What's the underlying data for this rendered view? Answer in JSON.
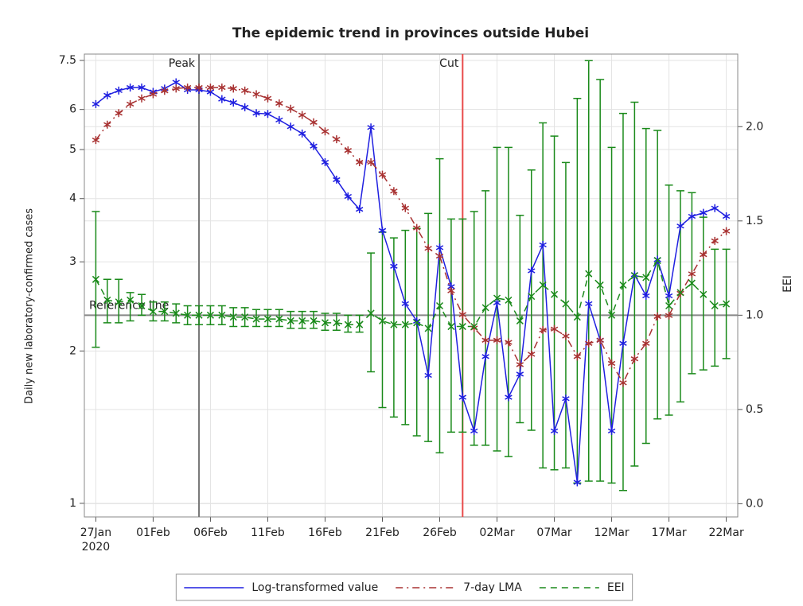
{
  "chart_data": {
    "type": "line",
    "title": "The epidemic trend in provinces outside Hubei",
    "ylabel": "Daily new laboratory-confirmed cases",
    "y2label": "EEI",
    "x_year_label": "2020",
    "x": [
      "2020-01-27",
      "2020-01-28",
      "2020-01-29",
      "2020-01-30",
      "2020-01-31",
      "2020-02-01",
      "2020-02-02",
      "2020-02-03",
      "2020-02-04",
      "2020-02-05",
      "2020-02-06",
      "2020-02-07",
      "2020-02-08",
      "2020-02-09",
      "2020-02-10",
      "2020-02-11",
      "2020-02-12",
      "2020-02-13",
      "2020-02-14",
      "2020-02-15",
      "2020-02-16",
      "2020-02-17",
      "2020-02-18",
      "2020-02-19",
      "2020-02-20",
      "2020-02-21",
      "2020-02-22",
      "2020-02-23",
      "2020-02-24",
      "2020-02-25",
      "2020-02-26",
      "2020-02-27",
      "2020-02-28",
      "2020-02-29",
      "2020-03-01",
      "2020-03-02",
      "2020-03-03",
      "2020-03-04",
      "2020-03-05",
      "2020-03-06",
      "2020-03-07",
      "2020-03-08",
      "2020-03-09",
      "2020-03-10",
      "2020-03-11",
      "2020-03-12",
      "2020-03-13",
      "2020-03-14",
      "2020-03-15",
      "2020-03-16",
      "2020-03-17",
      "2020-03-18",
      "2020-03-19",
      "2020-03-20",
      "2020-03-21",
      "2020-03-22"
    ],
    "xlim": [
      "2020-01-26",
      "2020-03-23"
    ],
    "xticks": [
      {
        "value": "2020-01-27",
        "label": "27Jan"
      },
      {
        "value": "2020-02-01",
        "label": "01Feb"
      },
      {
        "value": "2020-02-06",
        "label": "06Feb"
      },
      {
        "value": "2020-02-11",
        "label": "11Feb"
      },
      {
        "value": "2020-02-16",
        "label": "16Feb"
      },
      {
        "value": "2020-02-21",
        "label": "21Feb"
      },
      {
        "value": "2020-02-26",
        "label": "26Feb"
      },
      {
        "value": "2020-03-02",
        "label": "02Mar"
      },
      {
        "value": "2020-03-07",
        "label": "07Mar"
      },
      {
        "value": "2020-03-12",
        "label": "12Mar"
      },
      {
        "value": "2020-03-17",
        "label": "17Mar"
      },
      {
        "value": "2020-03-22",
        "label": "22Mar"
      }
    ],
    "ylim": [
      0.94,
      7.72
    ],
    "yticks": [
      1,
      2,
      3,
      4,
      5,
      6,
      7.5
    ],
    "ylog": true,
    "y2lim": [
      -0.07,
      2.385
    ],
    "y2ticks": [
      {
        "value": 0,
        "label": "0.0"
      },
      {
        "value": 0.5,
        "label": "0.5"
      },
      {
        "value": 1,
        "label": "1.0"
      },
      {
        "value": 1.5,
        "label": "1.5"
      },
      {
        "value": 2,
        "label": "2.0"
      }
    ],
    "grid": true,
    "legend": "bottom",
    "series": [
      {
        "name": "Log-transformed value",
        "color": "#1f1fe0",
        "dash": "solid",
        "marker": "star",
        "values": [
          6.15,
          6.4,
          6.54,
          6.63,
          6.63,
          6.5,
          6.6,
          6.79,
          6.56,
          6.56,
          6.5,
          6.29,
          6.19,
          6.06,
          5.9,
          5.88,
          5.72,
          5.55,
          5.38,
          5.08,
          4.72,
          4.36,
          4.04,
          3.81,
          5.53,
          3.46,
          2.94,
          2.48,
          2.29,
          1.79,
          3.2,
          2.68,
          1.62,
          1.39,
          1.95,
          2.49,
          1.62,
          1.8,
          2.88,
          3.24,
          1.39,
          1.61,
          1.1,
          2.48,
          2.1,
          1.39,
          2.07,
          2.83,
          2.57,
          3.03,
          2.57,
          3.53,
          3.69,
          3.75,
          3.83,
          3.69
        ]
      },
      {
        "name": "7-day LMA",
        "color": "#a83232",
        "dash": "dashdot",
        "marker": "star",
        "values": [
          5.22,
          5.6,
          5.9,
          6.15,
          6.31,
          6.43,
          6.53,
          6.6,
          6.63,
          6.63,
          6.63,
          6.63,
          6.6,
          6.54,
          6.43,
          6.31,
          6.17,
          6.02,
          5.85,
          5.66,
          5.43,
          5.24,
          4.98,
          4.72,
          4.72,
          4.46,
          4.14,
          3.83,
          3.5,
          3.19,
          3.08,
          2.63,
          2.36,
          2.22,
          2.1,
          2.1,
          2.08,
          1.88,
          1.97,
          2.2,
          2.21,
          2.14,
          1.95,
          2.07,
          2.1,
          1.89,
          1.73,
          1.93,
          2.07,
          2.34,
          2.35,
          2.6,
          2.84,
          3.1,
          3.3,
          3.45
        ]
      },
      {
        "name": "EEI",
        "color": "#1a8a1a",
        "dash": "dash",
        "marker": "x",
        "axis": "y2",
        "values": [
          1.19,
          1.08,
          1.07,
          1.08,
          1.05,
          1.02,
          1.02,
          1.01,
          1.0,
          1.0,
          1.0,
          1.0,
          0.99,
          0.99,
          0.98,
          0.98,
          0.98,
          0.97,
          0.97,
          0.97,
          0.96,
          0.96,
          0.95,
          0.95,
          1.01,
          0.97,
          0.95,
          0.95,
          0.96,
          0.93,
          1.05,
          0.94,
          0.94,
          0.94,
          1.04,
          1.09,
          1.08,
          0.97,
          1.1,
          1.16,
          1.11,
          1.06,
          0.99,
          1.22,
          1.16,
          1.0,
          1.16,
          1.21,
          1.2,
          1.29,
          1.05,
          1.12,
          1.17,
          1.11,
          1.05,
          1.06
        ],
        "lower": [
          0.83,
          0.96,
          0.96,
          0.97,
          1.0,
          0.97,
          0.97,
          0.96,
          0.95,
          0.95,
          0.95,
          0.95,
          0.94,
          0.94,
          0.94,
          0.94,
          0.94,
          0.93,
          0.93,
          0.93,
          0.92,
          0.92,
          0.91,
          0.91,
          0.7,
          0.51,
          0.46,
          0.42,
          0.36,
          0.33,
          0.27,
          0.38,
          0.38,
          0.31,
          0.31,
          0.28,
          0.25,
          0.43,
          0.39,
          0.19,
          0.18,
          0.19,
          0.11,
          0.12,
          0.12,
          0.11,
          0.07,
          0.2,
          0.32,
          0.45,
          0.47,
          0.54,
          0.69,
          0.71,
          0.73,
          0.77
        ],
        "upper": [
          1.55,
          1.19,
          1.19,
          1.12,
          1.11,
          1.07,
          1.07,
          1.06,
          1.05,
          1.05,
          1.05,
          1.05,
          1.04,
          1.04,
          1.03,
          1.03,
          1.03,
          1.02,
          1.02,
          1.02,
          1.01,
          1.01,
          1.0,
          1.0,
          1.33,
          1.44,
          1.41,
          1.45,
          1.46,
          1.54,
          1.83,
          1.51,
          1.51,
          1.55,
          1.66,
          1.89,
          1.89,
          1.53,
          1.77,
          2.02,
          1.95,
          1.81,
          2.15,
          2.35,
          2.25,
          1.89,
          2.07,
          2.13,
          1.99,
          1.98,
          1.69,
          1.66,
          1.65,
          1.52,
          1.35,
          1.35
        ]
      }
    ],
    "vlines": [
      {
        "x": "2020-02-05",
        "label": "Peak",
        "color": "#777777"
      },
      {
        "x": "2020-02-28",
        "label": "Cut",
        "color": "#e84a4a"
      }
    ],
    "hline": {
      "y": 1,
      "axis": "y2",
      "label": "Reference line",
      "color": "#888888"
    }
  }
}
